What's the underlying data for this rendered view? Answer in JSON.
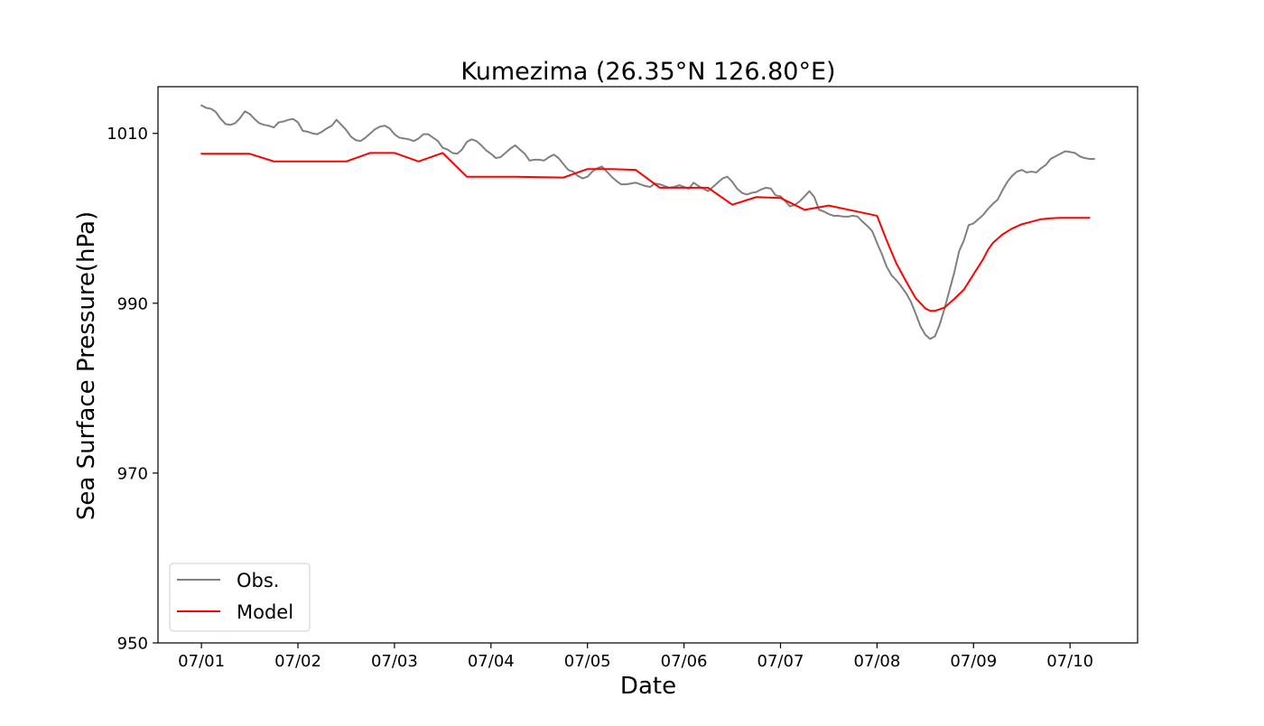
{
  "chart_data": {
    "type": "line",
    "title": "Kumezima (26.35°N 126.80°E)",
    "xlabel": "Date",
    "ylabel": "Sea Surface Pressure(hPa)",
    "x_unit": "days since 07/01 00:00",
    "xlim": [
      -0.45,
      9.7
    ],
    "ylim": [
      950,
      1015.5
    ],
    "x_ticks": [
      {
        "value": 0,
        "label": "07/01"
      },
      {
        "value": 1,
        "label": "07/02"
      },
      {
        "value": 2,
        "label": "07/03"
      },
      {
        "value": 3,
        "label": "07/04"
      },
      {
        "value": 4,
        "label": "07/05"
      },
      {
        "value": 5,
        "label": "07/06"
      },
      {
        "value": 6,
        "label": "07/07"
      },
      {
        "value": 7,
        "label": "07/08"
      },
      {
        "value": 8,
        "label": "07/09"
      },
      {
        "value": 9,
        "label": "07/10"
      }
    ],
    "y_ticks": [
      {
        "value": 950,
        "label": "950"
      },
      {
        "value": 970,
        "label": "970"
      },
      {
        "value": 990,
        "label": "990"
      },
      {
        "value": 1010,
        "label": "1010"
      }
    ],
    "grid": false,
    "legend": {
      "position": "lower-left",
      "entries": [
        "Obs.",
        "Model"
      ]
    },
    "series": [
      {
        "name": "Obs.",
        "color": "#808080",
        "points": [
          [
            0.0,
            1013.3
          ],
          [
            0.05,
            1013.0
          ],
          [
            0.1,
            1012.9
          ],
          [
            0.15,
            1012.5
          ],
          [
            0.2,
            1011.7
          ],
          [
            0.25,
            1011.1
          ],
          [
            0.3,
            1011.0
          ],
          [
            0.35,
            1011.2
          ],
          [
            0.4,
            1011.8
          ],
          [
            0.45,
            1012.6
          ],
          [
            0.5,
            1012.3
          ],
          [
            0.55,
            1011.7
          ],
          [
            0.6,
            1011.2
          ],
          [
            0.65,
            1011.0
          ],
          [
            0.7,
            1010.9
          ],
          [
            0.75,
            1010.7
          ],
          [
            0.8,
            1011.3
          ],
          [
            0.85,
            1011.4
          ],
          [
            0.9,
            1011.6
          ],
          [
            0.95,
            1011.7
          ],
          [
            1.0,
            1011.3
          ],
          [
            1.05,
            1010.3
          ],
          [
            1.1,
            1010.2
          ],
          [
            1.15,
            1010.0
          ],
          [
            1.2,
            1009.9
          ],
          [
            1.25,
            1010.2
          ],
          [
            1.3,
            1010.6
          ],
          [
            1.35,
            1010.9
          ],
          [
            1.4,
            1011.6
          ],
          [
            1.45,
            1011.0
          ],
          [
            1.5,
            1010.4
          ],
          [
            1.55,
            1009.6
          ],
          [
            1.6,
            1009.2
          ],
          [
            1.65,
            1009.1
          ],
          [
            1.7,
            1009.5
          ],
          [
            1.75,
            1010.0
          ],
          [
            1.8,
            1010.5
          ],
          [
            1.85,
            1010.8
          ],
          [
            1.9,
            1010.9
          ],
          [
            1.95,
            1010.6
          ],
          [
            2.0,
            1009.9
          ],
          [
            2.05,
            1009.5
          ],
          [
            2.1,
            1009.4
          ],
          [
            2.15,
            1009.3
          ],
          [
            2.2,
            1009.1
          ],
          [
            2.25,
            1009.4
          ],
          [
            2.3,
            1009.9
          ],
          [
            2.35,
            1009.9
          ],
          [
            2.4,
            1009.5
          ],
          [
            2.45,
            1009.1
          ],
          [
            2.5,
            1008.3
          ],
          [
            2.55,
            1008.1
          ],
          [
            2.6,
            1007.7
          ],
          [
            2.65,
            1007.6
          ],
          [
            2.7,
            1008.1
          ],
          [
            2.75,
            1009.0
          ],
          [
            2.8,
            1009.3
          ],
          [
            2.85,
            1009.1
          ],
          [
            2.9,
            1008.6
          ],
          [
            2.95,
            1008.0
          ],
          [
            3.0,
            1007.6
          ],
          [
            3.05,
            1007.1
          ],
          [
            3.1,
            1007.2
          ],
          [
            3.15,
            1007.7
          ],
          [
            3.2,
            1008.2
          ],
          [
            3.25,
            1008.6
          ],
          [
            3.3,
            1008.1
          ],
          [
            3.35,
            1007.6
          ],
          [
            3.4,
            1006.8
          ],
          [
            3.45,
            1006.9
          ],
          [
            3.5,
            1006.9
          ],
          [
            3.55,
            1006.8
          ],
          [
            3.6,
            1007.2
          ],
          [
            3.65,
            1007.5
          ],
          [
            3.7,
            1007.1
          ],
          [
            3.75,
            1006.4
          ],
          [
            3.8,
            1005.7
          ],
          [
            3.85,
            1005.5
          ],
          [
            3.9,
            1005.0
          ],
          [
            3.95,
            1004.7
          ],
          [
            4.0,
            1004.9
          ],
          [
            4.05,
            1005.5
          ],
          [
            4.1,
            1005.9
          ],
          [
            4.15,
            1006.1
          ],
          [
            4.2,
            1005.5
          ],
          [
            4.25,
            1004.9
          ],
          [
            4.3,
            1004.4
          ],
          [
            4.35,
            1004.0
          ],
          [
            4.4,
            1004.0
          ],
          [
            4.45,
            1004.1
          ],
          [
            4.5,
            1004.2
          ],
          [
            4.55,
            1004.0
          ],
          [
            4.6,
            1003.8
          ],
          [
            4.65,
            1003.7
          ],
          [
            4.7,
            1004.1
          ],
          [
            4.75,
            1004.0
          ],
          [
            4.8,
            1003.8
          ],
          [
            4.85,
            1003.6
          ],
          [
            4.9,
            1003.7
          ],
          [
            4.95,
            1003.9
          ],
          [
            5.0,
            1003.7
          ],
          [
            5.05,
            1003.5
          ],
          [
            5.1,
            1004.2
          ],
          [
            5.15,
            1003.8
          ],
          [
            5.2,
            1003.5
          ],
          [
            5.25,
            1003.2
          ],
          [
            5.3,
            1003.7
          ],
          [
            5.35,
            1004.2
          ],
          [
            5.4,
            1004.7
          ],
          [
            5.45,
            1004.9
          ],
          [
            5.5,
            1004.3
          ],
          [
            5.55,
            1003.5
          ],
          [
            5.6,
            1003.0
          ],
          [
            5.65,
            1002.8
          ],
          [
            5.7,
            1003.0
          ],
          [
            5.75,
            1003.1
          ],
          [
            5.8,
            1003.4
          ],
          [
            5.85,
            1003.6
          ],
          [
            5.9,
            1003.5
          ],
          [
            5.95,
            1002.7
          ],
          [
            6.0,
            1002.6
          ],
          [
            6.05,
            1002.0
          ],
          [
            6.1,
            1001.4
          ],
          [
            6.15,
            1001.6
          ],
          [
            6.2,
            1002.0
          ],
          [
            6.25,
            1002.6
          ],
          [
            6.3,
            1003.2
          ],
          [
            6.35,
            1002.5
          ],
          [
            6.4,
            1001.0
          ],
          [
            6.45,
            1000.8
          ],
          [
            6.5,
            1000.5
          ],
          [
            6.55,
            1000.3
          ],
          [
            6.6,
            1000.3
          ],
          [
            6.65,
            1000.2
          ],
          [
            6.7,
            1000.2
          ],
          [
            6.75,
            1000.3
          ],
          [
            6.8,
            1000.2
          ],
          [
            6.85,
            999.6
          ],
          [
            6.9,
            999.1
          ],
          [
            6.95,
            998.5
          ],
          [
            7.0,
            997.1
          ],
          [
            7.05,
            995.8
          ],
          [
            7.1,
            994.3
          ],
          [
            7.15,
            993.3
          ],
          [
            7.2,
            992.7
          ],
          [
            7.25,
            992.0
          ],
          [
            7.3,
            991.2
          ],
          [
            7.35,
            990.2
          ],
          [
            7.4,
            988.8
          ],
          [
            7.45,
            987.3
          ],
          [
            7.5,
            986.3
          ],
          [
            7.55,
            985.8
          ],
          [
            7.6,
            986.1
          ],
          [
            7.65,
            987.5
          ],
          [
            7.7,
            989.4
          ],
          [
            7.75,
            991.5
          ],
          [
            7.8,
            993.6
          ],
          [
            7.85,
            996.1
          ],
          [
            7.9,
            997.4
          ],
          [
            7.95,
            999.2
          ],
          [
            8.0,
            999.4
          ],
          [
            8.05,
            999.9
          ],
          [
            8.1,
            1000.4
          ],
          [
            8.15,
            1001.1
          ],
          [
            8.2,
            1001.7
          ],
          [
            8.25,
            1002.2
          ],
          [
            8.3,
            1003.3
          ],
          [
            8.35,
            1004.3
          ],
          [
            8.4,
            1005.0
          ],
          [
            8.45,
            1005.5
          ],
          [
            8.5,
            1005.7
          ],
          [
            8.55,
            1005.4
          ],
          [
            8.6,
            1005.5
          ],
          [
            8.65,
            1005.4
          ],
          [
            8.7,
            1005.9
          ],
          [
            8.75,
            1006.3
          ],
          [
            8.8,
            1007.0
          ],
          [
            8.85,
            1007.3
          ],
          [
            8.9,
            1007.6
          ],
          [
            8.95,
            1007.9
          ],
          [
            9.0,
            1007.8
          ],
          [
            9.05,
            1007.7
          ],
          [
            9.1,
            1007.3
          ],
          [
            9.15,
            1007.1
          ],
          [
            9.2,
            1007.0
          ],
          [
            9.25,
            1007.0
          ]
        ]
      },
      {
        "name": "Model",
        "color": "#ff0000",
        "points": [
          [
            0.0,
            1007.6
          ],
          [
            0.5,
            1007.6
          ],
          [
            0.75,
            1006.7
          ],
          [
            1.0,
            1006.7
          ],
          [
            1.5,
            1006.7
          ],
          [
            1.75,
            1007.7
          ],
          [
            2.0,
            1007.7
          ],
          [
            2.25,
            1006.7
          ],
          [
            2.5,
            1007.7
          ],
          [
            2.75,
            1004.9
          ],
          [
            3.0,
            1004.9
          ],
          [
            3.25,
            1004.9
          ],
          [
            3.75,
            1004.8
          ],
          [
            4.0,
            1005.8
          ],
          [
            4.25,
            1005.8
          ],
          [
            4.5,
            1005.7
          ],
          [
            4.75,
            1003.6
          ],
          [
            5.0,
            1003.6
          ],
          [
            5.25,
            1003.6
          ],
          [
            5.5,
            1001.6
          ],
          [
            5.75,
            1002.5
          ],
          [
            6.0,
            1002.4
          ],
          [
            6.25,
            1001.0
          ],
          [
            6.5,
            1001.5
          ],
          [
            6.75,
            1000.9
          ],
          [
            7.0,
            1000.3
          ],
          [
            7.1,
            997.4
          ],
          [
            7.2,
            994.7
          ],
          [
            7.3,
            992.6
          ],
          [
            7.4,
            990.6
          ],
          [
            7.5,
            989.4
          ],
          [
            7.55,
            989.1
          ],
          [
            7.6,
            989.1
          ],
          [
            7.7,
            989.5
          ],
          [
            7.8,
            990.5
          ],
          [
            7.9,
            991.6
          ],
          [
            8.0,
            993.4
          ],
          [
            8.1,
            995.2
          ],
          [
            8.15,
            996.3
          ],
          [
            8.2,
            997.1
          ],
          [
            8.3,
            998.1
          ],
          [
            8.4,
            998.8
          ],
          [
            8.5,
            999.3
          ],
          [
            8.6,
            999.6
          ],
          [
            8.7,
            999.9
          ],
          [
            8.8,
            1000.0
          ],
          [
            8.9,
            1000.05
          ],
          [
            9.0,
            1000.05
          ],
          [
            9.1,
            1000.05
          ],
          [
            9.2,
            1000.05
          ]
        ]
      }
    ]
  }
}
